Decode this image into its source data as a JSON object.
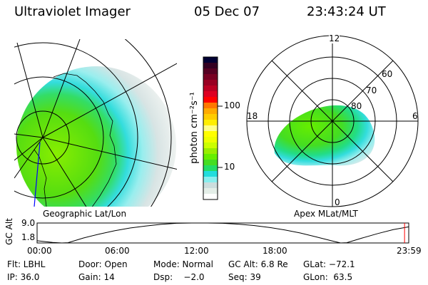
{
  "header": {
    "instrument": "Ultraviolet Imager",
    "date": "05 Dec 07",
    "time": "23:43:24 UT"
  },
  "left_panel": {
    "label": "Geographic Lat/Lon"
  },
  "right_panel": {
    "label": "Apex MLat/MLT",
    "mlt_labels": [
      "12",
      "18",
      "6",
      "0"
    ],
    "mlat_labels": [
      "80",
      "70",
      "60"
    ]
  },
  "colorbar": {
    "unit_label": "photon cm⁻²s⁻¹",
    "tick_labels": [
      "100",
      "10"
    ],
    "scale": "log",
    "colors": [
      "#000033",
      "#330022",
      "#550022",
      "#770022",
      "#990022",
      "#bb0022",
      "#dd0022",
      "#ff0000",
      "#ff7700",
      "#ffaa00",
      "#ffcc00",
      "#ffee00",
      "#ffff88",
      "#ffff00",
      "#eeff00",
      "#ccff00",
      "#99ee00",
      "#66ee00",
      "#44dd22",
      "#22dd66",
      "#22dddd",
      "#88eeee",
      "#ccdddd",
      "#e4eee8",
      "#ffffff"
    ]
  },
  "chart_data": {
    "type": "line",
    "ylabel": "GC Alt",
    "ytick_labels": [
      "9.0",
      "1.8"
    ],
    "ylim": [
      1.8,
      9.0
    ],
    "xtick_labels": [
      "00:00",
      "06:00",
      "12:00",
      "18:00",
      "23:59"
    ],
    "xlim": [
      0,
      24
    ],
    "x": [
      0,
      1,
      1.6,
      2,
      3,
      4,
      5,
      6,
      7,
      8,
      9,
      10,
      11,
      12,
      13,
      14,
      15,
      16,
      17,
      18,
      19,
      19.6,
      20,
      21,
      22,
      23,
      24
    ],
    "y": [
      2.6,
      2.0,
      1.8,
      1.9,
      3.6,
      5.0,
      6.2,
      7.2,
      7.9,
      8.5,
      8.9,
      9.0,
      9.0,
      8.9,
      8.6,
      8.1,
      7.4,
      6.5,
      5.4,
      4.0,
      2.6,
      1.8,
      1.9,
      3.6,
      5.2,
      6.6,
      7.6
    ],
    "current_time_marker": 23.73
  },
  "info": {
    "row1": [
      "Flt: LBHL",
      "Door: Open",
      "Mode: Normal",
      "GC Alt: 6.8 Re",
      "GLat: −72.1"
    ],
    "row2": [
      "IP: 36.0",
      "Gain: 14",
      "Dsp:    −2.0",
      "Seq: 39",
      "GLon:  63.5"
    ]
  },
  "colors": {
    "marker": "#ff0000",
    "track": "#0000ff"
  }
}
